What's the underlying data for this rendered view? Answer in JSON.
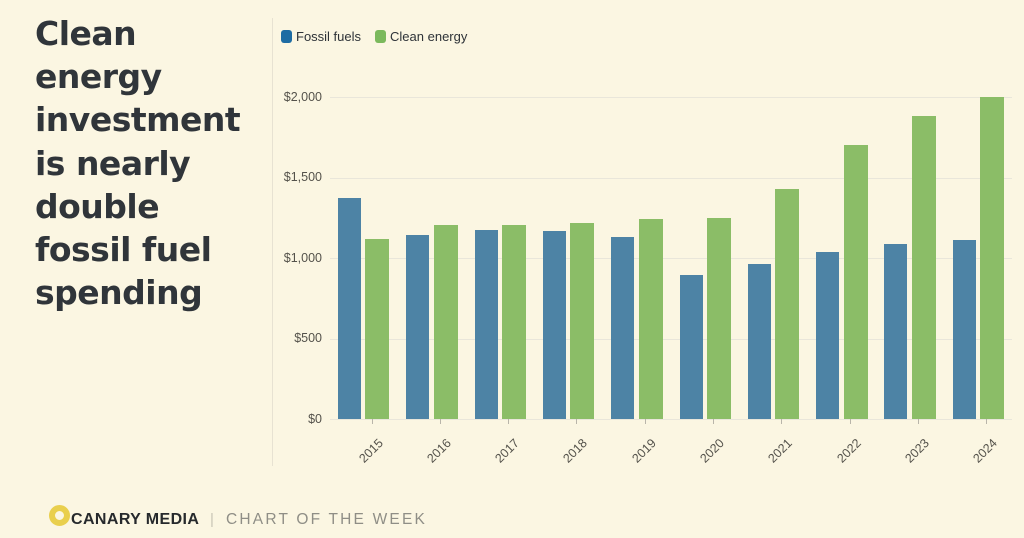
{
  "title": {
    "text": "Clean\nenergy\ninvestment\nis nearly\ndouble\nfossil fuel\nspending",
    "plain": "Clean energy investment is nearly double fossil fuel spending"
  },
  "colors": {
    "background": "#fbf6e2",
    "fossil_bar": "#4d83a5",
    "clean_bar": "#8bbd67",
    "fossil_swatch": "#1e6ca3",
    "clean_swatch": "#7bb95c",
    "title_text": "#30353a",
    "gridline": "#e9e6da",
    "axis_text": "#54524b",
    "logo_yellow": "#e9cf4d",
    "footer_gray": "#8f8e86"
  },
  "legend": {
    "items": [
      {
        "label": "Fossil fuels",
        "color": "#1e6ca3"
      },
      {
        "label": "Clean energy",
        "color": "#7bb95c"
      }
    ],
    "position": "top-left"
  },
  "chart_data": {
    "type": "bar",
    "title": "Clean energy investment is nearly double fossil fuel spending",
    "categories": [
      "2015",
      "2016",
      "2017",
      "2018",
      "2019",
      "2020",
      "2021",
      "2022",
      "2023",
      "2024"
    ],
    "series": [
      {
        "name": "Fossil fuels",
        "color": "#4d83a5",
        "values": [
          1370,
          1145,
          1175,
          1170,
          1130,
          895,
          965,
          1035,
          1090,
          1115
        ]
      },
      {
        "name": "Clean energy",
        "color": "#8bbd67",
        "values": [
          1120,
          1205,
          1205,
          1215,
          1240,
          1250,
          1430,
          1700,
          1880,
          2000
        ]
      }
    ],
    "xlabel": "",
    "ylabel": "",
    "ylim": [
      0,
      2000
    ],
    "yticks": [
      {
        "value": 0,
        "label": "$0"
      },
      {
        "value": 500,
        "label": "$500"
      },
      {
        "value": 1000,
        "label": "$1,000"
      },
      {
        "value": 1500,
        "label": "$1,500"
      },
      {
        "value": 2000,
        "label": "$2,000"
      }
    ],
    "grid": true,
    "legend_position": "top-left"
  },
  "footer": {
    "brand": "CANARY MEDIA",
    "separator": "|",
    "tagline": "CHART OF THE WEEK"
  }
}
